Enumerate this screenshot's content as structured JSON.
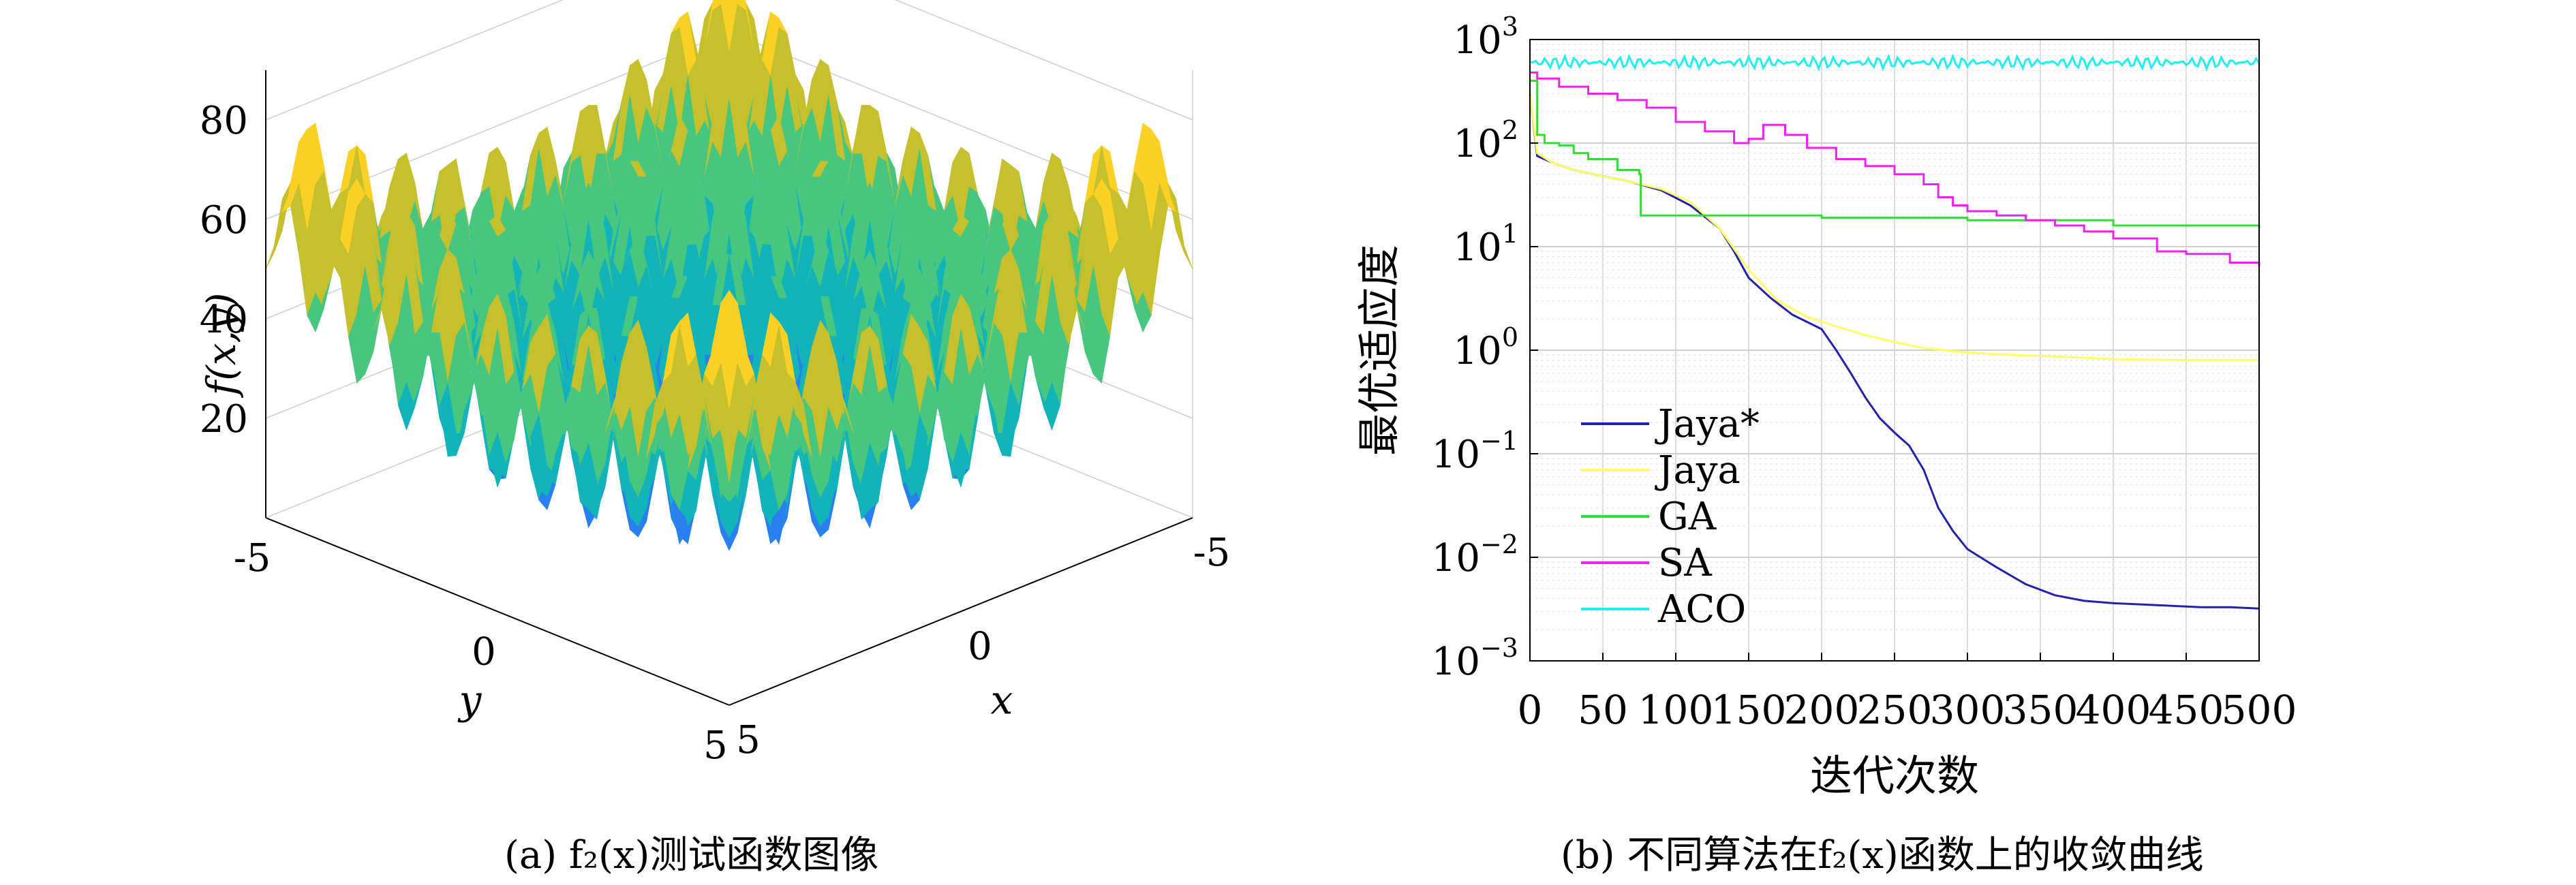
{
  "panel_a": {
    "caption": "(a) f₂(x)测试函数图像",
    "chart_data": {
      "type": "surface3d",
      "function_name": "f₂",
      "zlabel": "f(x,y)",
      "xlabel": "x",
      "ylabel": "y",
      "z_ticks": [
        "20",
        "40",
        "60",
        "80"
      ],
      "x_ticks": [
        "-5",
        "0",
        "5"
      ],
      "y_ticks": [
        "-5",
        "0",
        "5"
      ],
      "xlim": [
        -5,
        5
      ],
      "ylim": [
        -5,
        5
      ],
      "zlim": [
        0,
        90
      ],
      "colormap": [
        "#3e26a8",
        "#2a7ff0",
        "#12b3b9",
        "#47c680",
        "#c5c02c",
        "#fbd126",
        "#f9fb15"
      ]
    }
  },
  "panel_b": {
    "caption": "(b) 不同算法在f₂(x)函数上的收敛曲线",
    "chart_data": {
      "type": "line",
      "xlabel": "迭代次数",
      "ylabel": "最优适应度",
      "yscale": "log",
      "xlim": [
        0,
        500
      ],
      "ylim": [
        0.001,
        1000
      ],
      "x_ticks": [
        "0",
        "50",
        "100",
        "150",
        "200",
        "250",
        "300",
        "350",
        "400",
        "450",
        "500"
      ],
      "y_ticks": [
        {
          "base": "10",
          "exp": "3"
        },
        {
          "base": "10",
          "exp": "2"
        },
        {
          "base": "10",
          "exp": "1"
        },
        {
          "base": "10",
          "exp": "0"
        },
        {
          "base": "10",
          "exp": "−1"
        },
        {
          "base": "10",
          "exp": "−2"
        },
        {
          "base": "10",
          "exp": "−3"
        }
      ],
      "grid": true,
      "legend_position": "bottom-left",
      "series": [
        {
          "name": "Jaya*",
          "color": "#2222aa",
          "x": [
            0,
            5,
            15,
            30,
            50,
            70,
            90,
            110,
            130,
            140,
            150,
            165,
            180,
            200,
            210,
            220,
            230,
            240,
            250,
            260,
            270,
            280,
            290,
            300,
            320,
            340,
            360,
            380,
            400,
            420,
            440,
            460,
            480,
            500
          ],
          "y": [
            300,
            75,
            65,
            55,
            48,
            42,
            35,
            25,
            15,
            9,
            5,
            3.2,
            2.2,
            1.6,
            1.0,
            0.6,
            0.35,
            0.22,
            0.16,
            0.12,
            0.07,
            0.03,
            0.018,
            0.012,
            0.008,
            0.0055,
            0.0043,
            0.0038,
            0.0036,
            0.0035,
            0.0034,
            0.0033,
            0.0033,
            0.0032
          ]
        },
        {
          "name": "Jaya",
          "color": "#ffff66",
          "x": [
            0,
            5,
            15,
            30,
            50,
            70,
            90,
            110,
            130,
            150,
            170,
            190,
            210,
            230,
            250,
            270,
            300,
            330,
            360,
            400,
            450,
            500
          ],
          "y": [
            300,
            80,
            65,
            55,
            48,
            42,
            36,
            27,
            15,
            6,
            3,
            2.1,
            1.7,
            1.4,
            1.2,
            1.05,
            0.95,
            0.9,
            0.87,
            0.82,
            0.8,
            0.8
          ]
        },
        {
          "name": "GA",
          "color": "#33dd33",
          "x": [
            0,
            5,
            10,
            20,
            30,
            40,
            60,
            75,
            76,
            150,
            200,
            300,
            400,
            500
          ],
          "y": [
            400,
            120,
            100,
            95,
            80,
            70,
            55,
            50,
            20,
            20,
            19,
            18,
            16,
            15
          ]
        },
        {
          "name": "SA",
          "color": "#ee22ee",
          "x": [
            0,
            5,
            20,
            40,
            60,
            80,
            100,
            120,
            140,
            150,
            160,
            175,
            190,
            210,
            230,
            250,
            270,
            280,
            290,
            300,
            320,
            340,
            360,
            380,
            400,
            430,
            450,
            480,
            500
          ],
          "y": [
            480,
            420,
            350,
            300,
            260,
            220,
            160,
            130,
            100,
            110,
            150,
            120,
            90,
            70,
            60,
            50,
            40,
            30,
            25,
            22,
            20,
            18,
            16,
            14,
            12,
            9,
            8.5,
            7,
            6.5
          ]
        },
        {
          "name": "ACO",
          "color": "#22eeee",
          "x": [
            0,
            500
          ],
          "y": [
            600,
            600
          ]
        }
      ]
    }
  }
}
